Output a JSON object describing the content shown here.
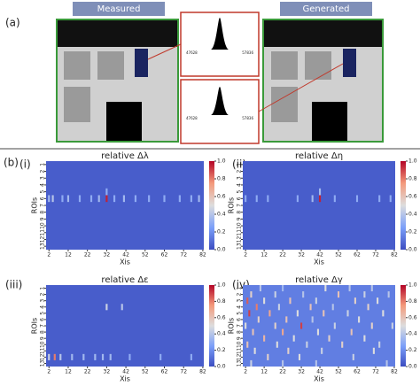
{
  "figure": {
    "a_label": "(a)",
    "b_label": "(b)",
    "measured": "Measured",
    "generated": "Generated",
    "inset_top_min": "47628",
    "inset_top_max": "57836",
    "inset_bottom_min": "47628",
    "inset_bottom_max": "57836"
  },
  "chart_data": [
    {
      "type": "heatmap",
      "panel": "(i)",
      "title": "relative Δλ",
      "xlabel": "Xis",
      "ylabel": "ROIs",
      "colormap": "coolwarm",
      "xlim": [
        0.5,
        82.5
      ],
      "ylim": [
        0.5,
        13.5
      ],
      "xticks": [
        2,
        12,
        22,
        32,
        42,
        52,
        62,
        72,
        82
      ],
      "yticks": [
        1,
        2,
        3,
        4,
        5,
        6,
        7,
        8,
        9,
        10,
        11,
        12,
        13
      ],
      "clim": [
        0,
        1
      ],
      "cticks": [
        {
          "value": 0,
          "label": "0.0"
        },
        0.2,
        0.4,
        0.6,
        0.8,
        {
          "value": 1,
          "label": "1.0"
        }
      ],
      "base_value": 0.05,
      "cells": [
        [
          6,
          2,
          0.35
        ],
        [
          6,
          4,
          0.4
        ],
        [
          6,
          9,
          0.3
        ],
        [
          6,
          12,
          0.35
        ],
        [
          6,
          18,
          0.3
        ],
        [
          6,
          24,
          0.3
        ],
        [
          6,
          28,
          0.35
        ],
        [
          6,
          32,
          0.95
        ],
        [
          6,
          36,
          0.3
        ],
        [
          6,
          41,
          0.35
        ],
        [
          6,
          47,
          0.3
        ],
        [
          6,
          54,
          0.3
        ],
        [
          6,
          62,
          0.3
        ],
        [
          6,
          70,
          0.3
        ],
        [
          6,
          76,
          0.3
        ],
        [
          6,
          80,
          0.35
        ],
        [
          5,
          32,
          0.3
        ]
      ]
    },
    {
      "type": "heatmap",
      "panel": "(ii)",
      "title": "relative Δη",
      "xlabel": "Xis",
      "ylabel": "ROIs",
      "colormap": "coolwarm",
      "xlim": [
        0.5,
        82.5
      ],
      "ylim": [
        0.5,
        13.5
      ],
      "xticks": [
        2,
        12,
        22,
        32,
        42,
        52,
        62,
        72,
        82
      ],
      "yticks": [
        1,
        2,
        3,
        4,
        5,
        6,
        7,
        8,
        9,
        10,
        11,
        12,
        13
      ],
      "clim": [
        0,
        1
      ],
      "cticks": [
        {
          "value": 0,
          "label": "0.0"
        },
        0.2,
        0.4,
        0.6,
        0.8,
        {
          "value": 1,
          "label": "1.0"
        }
      ],
      "base_value": 0.05,
      "cells": [
        [
          6,
          2,
          0.3
        ],
        [
          6,
          8,
          0.3
        ],
        [
          6,
          14,
          0.3
        ],
        [
          6,
          30,
          0.3
        ],
        [
          6,
          38,
          0.35
        ],
        [
          6,
          42,
          0.95
        ],
        [
          6,
          50,
          0.3
        ],
        [
          6,
          62,
          0.3
        ],
        [
          6,
          74,
          0.3
        ],
        [
          6,
          80,
          0.3
        ],
        [
          5,
          42,
          0.35
        ]
      ]
    },
    {
      "type": "heatmap",
      "panel": "(iii)",
      "title": "relative Δε",
      "xlabel": "Xis",
      "ylabel": "ROIs",
      "colormap": "coolwarm",
      "xlim": [
        0.5,
        82.5
      ],
      "ylim": [
        0.5,
        13.5
      ],
      "xticks": [
        2,
        12,
        22,
        32,
        42,
        52,
        62,
        72,
        82
      ],
      "yticks": [
        1,
        2,
        3,
        4,
        5,
        6,
        7,
        8,
        9,
        10,
        11,
        12,
        13
      ],
      "clim": [
        0,
        1
      ],
      "cticks": [
        {
          "value": 0,
          "label": "0.0"
        },
        0.2,
        0.4,
        0.6,
        0.8,
        {
          "value": 1,
          "label": "1.0"
        }
      ],
      "base_value": 0.05,
      "cells": [
        [
          4,
          32,
          0.45
        ],
        [
          4,
          40,
          0.4
        ],
        [
          12,
          2,
          0.45
        ],
        [
          12,
          5,
          0.8
        ],
        [
          12,
          8,
          0.4
        ],
        [
          12,
          14,
          0.35
        ],
        [
          12,
          20,
          0.35
        ],
        [
          12,
          26,
          0.35
        ],
        [
          12,
          30,
          0.35
        ],
        [
          12,
          34,
          0.35
        ],
        [
          12,
          44,
          0.3
        ],
        [
          12,
          60,
          0.3
        ],
        [
          12,
          76,
          0.3
        ]
      ]
    },
    {
      "type": "heatmap",
      "panel": "(iv)",
      "title": "relative Δγ",
      "xlabel": "Xis",
      "ylabel": "ROIs",
      "colormap": "coolwarm",
      "xlim": [
        0.5,
        82.5
      ],
      "ylim": [
        0.5,
        13.5
      ],
      "xticks": [
        2,
        12,
        22,
        32,
        42,
        52,
        62,
        72,
        82
      ],
      "yticks": [
        1,
        2,
        3,
        4,
        5,
        6,
        7,
        8,
        9,
        10,
        11,
        12,
        13
      ],
      "clim": [
        0,
        1
      ],
      "cticks": [
        {
          "value": 0,
          "label": "0.0"
        },
        0.2,
        0.4,
        0.6,
        0.8,
        {
          "value": 1,
          "label": "1.0"
        }
      ],
      "base_value": 0.15,
      "cells": [
        [
          1,
          10,
          0.4
        ],
        [
          1,
          22,
          0.35
        ],
        [
          1,
          45,
          0.5
        ],
        [
          1,
          58,
          0.4
        ],
        [
          1,
          70,
          0.4
        ],
        [
          2,
          5,
          0.55
        ],
        [
          2,
          18,
          0.45
        ],
        [
          2,
          33,
          0.4
        ],
        [
          2,
          52,
          0.6
        ],
        [
          2,
          66,
          0.45
        ],
        [
          2,
          79,
          0.4
        ],
        [
          3,
          3,
          0.85
        ],
        [
          3,
          12,
          0.5
        ],
        [
          3,
          26,
          0.6
        ],
        [
          3,
          40,
          0.45
        ],
        [
          3,
          61,
          0.55
        ],
        [
          3,
          73,
          0.5
        ],
        [
          4,
          8,
          0.8
        ],
        [
          4,
          20,
          0.45
        ],
        [
          4,
          37,
          0.6
        ],
        [
          4,
          49,
          0.4
        ],
        [
          4,
          68,
          0.55
        ],
        [
          5,
          4,
          0.9
        ],
        [
          5,
          15,
          0.7
        ],
        [
          5,
          30,
          0.5
        ],
        [
          5,
          44,
          0.6
        ],
        [
          5,
          57,
          0.45
        ],
        [
          5,
          76,
          0.5
        ],
        [
          6,
          9,
          0.55
        ],
        [
          6,
          24,
          0.6
        ],
        [
          6,
          38,
          0.4
        ],
        [
          6,
          63,
          0.5
        ],
        [
          7,
          2,
          0.5
        ],
        [
          7,
          18,
          0.55
        ],
        [
          7,
          32,
          0.9
        ],
        [
          7,
          50,
          0.45
        ],
        [
          7,
          70,
          0.55
        ],
        [
          7,
          81,
          0.45
        ],
        [
          8,
          6,
          0.6
        ],
        [
          8,
          22,
          0.7
        ],
        [
          8,
          41,
          0.5
        ],
        [
          8,
          59,
          0.6
        ],
        [
          9,
          12,
          0.65
        ],
        [
          9,
          28,
          0.5
        ],
        [
          9,
          47,
          0.55
        ],
        [
          9,
          66,
          0.5
        ],
        [
          10,
          3,
          0.6
        ],
        [
          10,
          19,
          0.5
        ],
        [
          10,
          35,
          0.45
        ],
        [
          10,
          54,
          0.55
        ],
        [
          10,
          74,
          0.45
        ],
        [
          11,
          7,
          0.5
        ],
        [
          11,
          25,
          0.55
        ],
        [
          11,
          43,
          0.45
        ],
        [
          11,
          71,
          0.5
        ],
        [
          12,
          14,
          0.55
        ],
        [
          12,
          31,
          0.5
        ],
        [
          12,
          60,
          0.45
        ],
        [
          13,
          5,
          0.45
        ],
        [
          13,
          22,
          0.4
        ],
        [
          13,
          40,
          0.4
        ],
        [
          13,
          78,
          0.4
        ]
      ]
    }
  ]
}
